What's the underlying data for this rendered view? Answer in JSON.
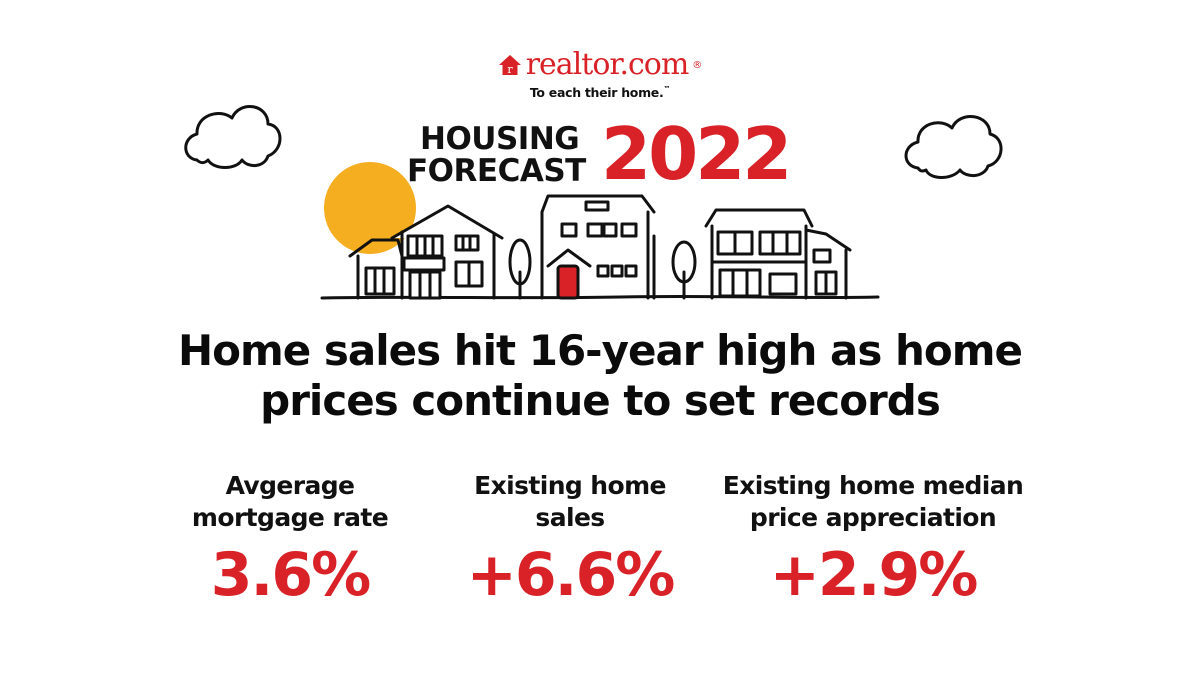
{
  "brand": {
    "name": "realtor.com",
    "trademark": "®",
    "tagline": "To each their home.",
    "tagline_mark": "™",
    "logo_icon": "house-r-icon"
  },
  "title": {
    "line1": "HOUSING",
    "line2": "FORECAST",
    "year": "2022"
  },
  "headline": {
    "line1": "Home sales hit 16-year high as home",
    "line2": "prices continue to set records"
  },
  "stats": [
    {
      "label_line1": "Avgerage",
      "label_line2": "mortgage rate",
      "value": "3.6%"
    },
    {
      "label_line1": "Existing home",
      "label_line2": "sales",
      "value": "+6.6%"
    },
    {
      "label_line1": "Existing home median",
      "label_line2": "price appreciation",
      "value": "+2.9%"
    }
  ],
  "colors": {
    "accent_red": "#d92228",
    "sun_yellow": "#f5ae1f",
    "ink": "#111111",
    "background": "#ffffff"
  },
  "illustration": {
    "icons": [
      "cloud-left-icon",
      "cloud-right-icon",
      "sun-icon",
      "houses-illustration",
      "tree-icon",
      "red-door-icon"
    ]
  }
}
